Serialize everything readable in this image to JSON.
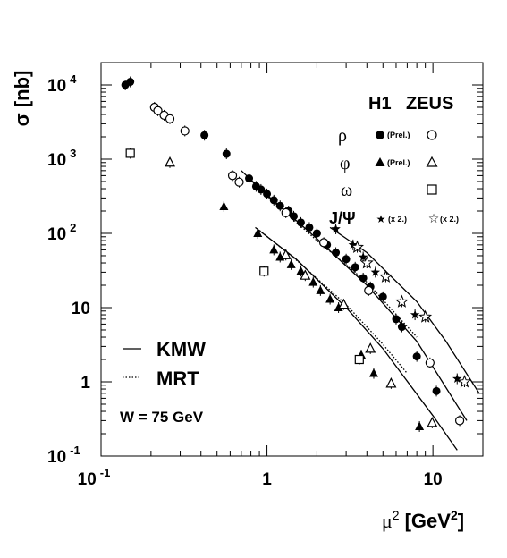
{
  "chart_data": {
    "type": "scatter",
    "title": "",
    "xlabel": {
      "base": "μ",
      "base_sup": "2",
      "units": "[GeV",
      "units_sup": "2",
      "units_close": "]"
    },
    "ylabel": "σ [nb]",
    "x_scale": "log",
    "y_scale": "log",
    "xlim": [
      0.1,
      20
    ],
    "ylim": [
      0.1,
      20000
    ],
    "grid": false,
    "x_ticks": [
      {
        "value": 0.1,
        "base": "10",
        "exp": "-1"
      },
      {
        "value": 1,
        "base": "1",
        "exp": ""
      },
      {
        "value": 10,
        "base": "10",
        "exp": ""
      }
    ],
    "y_ticks": [
      {
        "value": 0.1,
        "base": "10",
        "exp": "-1"
      },
      {
        "value": 1,
        "base": "1",
        "exp": ""
      },
      {
        "value": 10,
        "base": "10",
        "exp": ""
      },
      {
        "value": 100,
        "base": "10",
        "exp": "2"
      },
      {
        "value": 1000,
        "base": "10",
        "exp": "3"
      },
      {
        "value": 10000,
        "base": "10",
        "exp": "4"
      }
    ],
    "legend": {
      "header_h1": "H1",
      "header_zeus": "ZEUS",
      "rows": [
        {
          "particle": "ρ",
          "h1_note": "(Prel.)",
          "zeus_note": ""
        },
        {
          "particle": "φ",
          "h1_note": "(Prel.)",
          "zeus_note": ""
        },
        {
          "particle": "ω",
          "h1_note": "",
          "zeus_note": ""
        },
        {
          "particle": "J/Ψ",
          "h1_note": "(x 2.)",
          "zeus_note": "(x 2.)"
        }
      ],
      "lines": [
        {
          "name": "KMW",
          "style": "solid"
        },
        {
          "name": "MRT",
          "style": "dotted"
        }
      ],
      "energy_label": "W = 75 GeV",
      "placement": "right"
    },
    "series": [
      {
        "name": "ρ",
        "experiment": "H1",
        "marker": "filled-circle",
        "points": [
          [
            0.14,
            10000
          ],
          [
            0.15,
            11000
          ],
          [
            0.42,
            2100
          ],
          [
            0.57,
            1180
          ],
          [
            0.78,
            550
          ],
          [
            0.86,
            430
          ],
          [
            0.92,
            390
          ],
          [
            1.0,
            340
          ],
          [
            1.1,
            280
          ],
          [
            1.2,
            235
          ],
          [
            1.35,
            200
          ],
          [
            1.45,
            170
          ],
          [
            1.6,
            140
          ],
          [
            1.8,
            120
          ],
          [
            2.0,
            100
          ],
          [
            2.3,
            70
          ],
          [
            2.6,
            55
          ],
          [
            3.0,
            45
          ],
          [
            3.4,
            35
          ],
          [
            3.8,
            25
          ],
          [
            4.2,
            19
          ],
          [
            5.0,
            14
          ],
          [
            6.0,
            7
          ],
          [
            6.5,
            5.5
          ],
          [
            8.0,
            2.2
          ],
          [
            10.5,
            0.75
          ]
        ]
      },
      {
        "name": "ρ",
        "experiment": "ZEUS",
        "marker": "open-circle",
        "points": [
          [
            0.21,
            5000
          ],
          [
            0.22,
            4500
          ],
          [
            0.24,
            3900
          ],
          [
            0.26,
            3500
          ],
          [
            0.32,
            2400
          ],
          [
            0.62,
            600
          ],
          [
            0.68,
            490
          ],
          [
            1.3,
            190
          ],
          [
            2.2,
            75
          ],
          [
            4.1,
            17
          ],
          [
            9.6,
            1.8
          ],
          [
            14.5,
            0.3
          ]
        ]
      },
      {
        "name": "φ",
        "experiment": "H1",
        "marker": "filled-triangle",
        "points": [
          [
            0.55,
            230
          ],
          [
            0.88,
            100
          ],
          [
            1.1,
            60
          ],
          [
            1.2,
            48
          ],
          [
            1.4,
            38
          ],
          [
            1.6,
            31
          ],
          [
            1.9,
            22
          ],
          [
            2.1,
            17
          ],
          [
            2.4,
            13
          ],
          [
            2.7,
            10
          ],
          [
            3.7,
            2.3
          ],
          [
            4.4,
            1.3
          ],
          [
            8.3,
            0.25
          ]
        ]
      },
      {
        "name": "φ",
        "experiment": "ZEUS",
        "marker": "open-triangle",
        "points": [
          [
            0.26,
            900
          ],
          [
            1.3,
            51
          ],
          [
            1.7,
            27
          ],
          [
            2.9,
            11
          ],
          [
            4.2,
            2.8
          ],
          [
            5.6,
            0.95
          ],
          [
            9.9,
            0.28
          ]
        ]
      },
      {
        "name": "ω",
        "experiment": "ZEUS",
        "marker": "open-square",
        "points": [
          [
            0.15,
            1200
          ],
          [
            0.96,
            31
          ],
          [
            3.6,
            2.0
          ]
        ]
      },
      {
        "name": "J/Ψ",
        "experiment": "H1",
        "marker": "filled-star",
        "points": [
          [
            2.6,
            115
          ],
          [
            3.3,
            70
          ],
          [
            3.8,
            48
          ],
          [
            4.5,
            30
          ],
          [
            7.8,
            8
          ],
          [
            14,
            1.1
          ]
        ]
      },
      {
        "name": "J/Ψ",
        "experiment": "ZEUS",
        "marker": "open-star",
        "points": [
          [
            3.5,
            65
          ],
          [
            4.0,
            40
          ],
          [
            5.2,
            26
          ],
          [
            6.5,
            12
          ],
          [
            9.0,
            7.5
          ],
          [
            15.5,
            1.0
          ]
        ]
      }
    ],
    "curves": [
      {
        "name": "KMW",
        "style": "solid",
        "points": [
          [
            0.7,
            700
          ],
          [
            1.0,
            330
          ],
          [
            2.0,
            85
          ],
          [
            4.0,
            20
          ],
          [
            8.0,
            3.5
          ],
          [
            16,
            0.3
          ]
        ]
      },
      {
        "name": "KMW",
        "style": "solid",
        "points": [
          [
            0.85,
            120
          ],
          [
            1.5,
            45
          ],
          [
            3.0,
            10
          ],
          [
            5.0,
            2.8
          ],
          [
            10,
            0.35
          ],
          [
            14,
            0.12
          ]
        ]
      },
      {
        "name": "KMW",
        "style": "solid",
        "points": [
          [
            2.4,
            120
          ],
          [
            4.0,
            55
          ],
          [
            8.0,
            12
          ],
          [
            12,
            3.5
          ],
          [
            19,
            0.7
          ]
        ]
      },
      {
        "name": "MRT",
        "style": "dotted",
        "points": [
          [
            0.75,
            600
          ],
          [
            1.0,
            320
          ],
          [
            2.0,
            80
          ],
          [
            4.0,
            22
          ],
          [
            8.0,
            4.0
          ]
        ]
      },
      {
        "name": "MRT",
        "style": "dotted",
        "points": [
          [
            0.9,
            110
          ],
          [
            1.5,
            44
          ],
          [
            3.0,
            11
          ],
          [
            5.0,
            3.2
          ],
          [
            7.0,
            1.3
          ]
        ]
      }
    ]
  }
}
